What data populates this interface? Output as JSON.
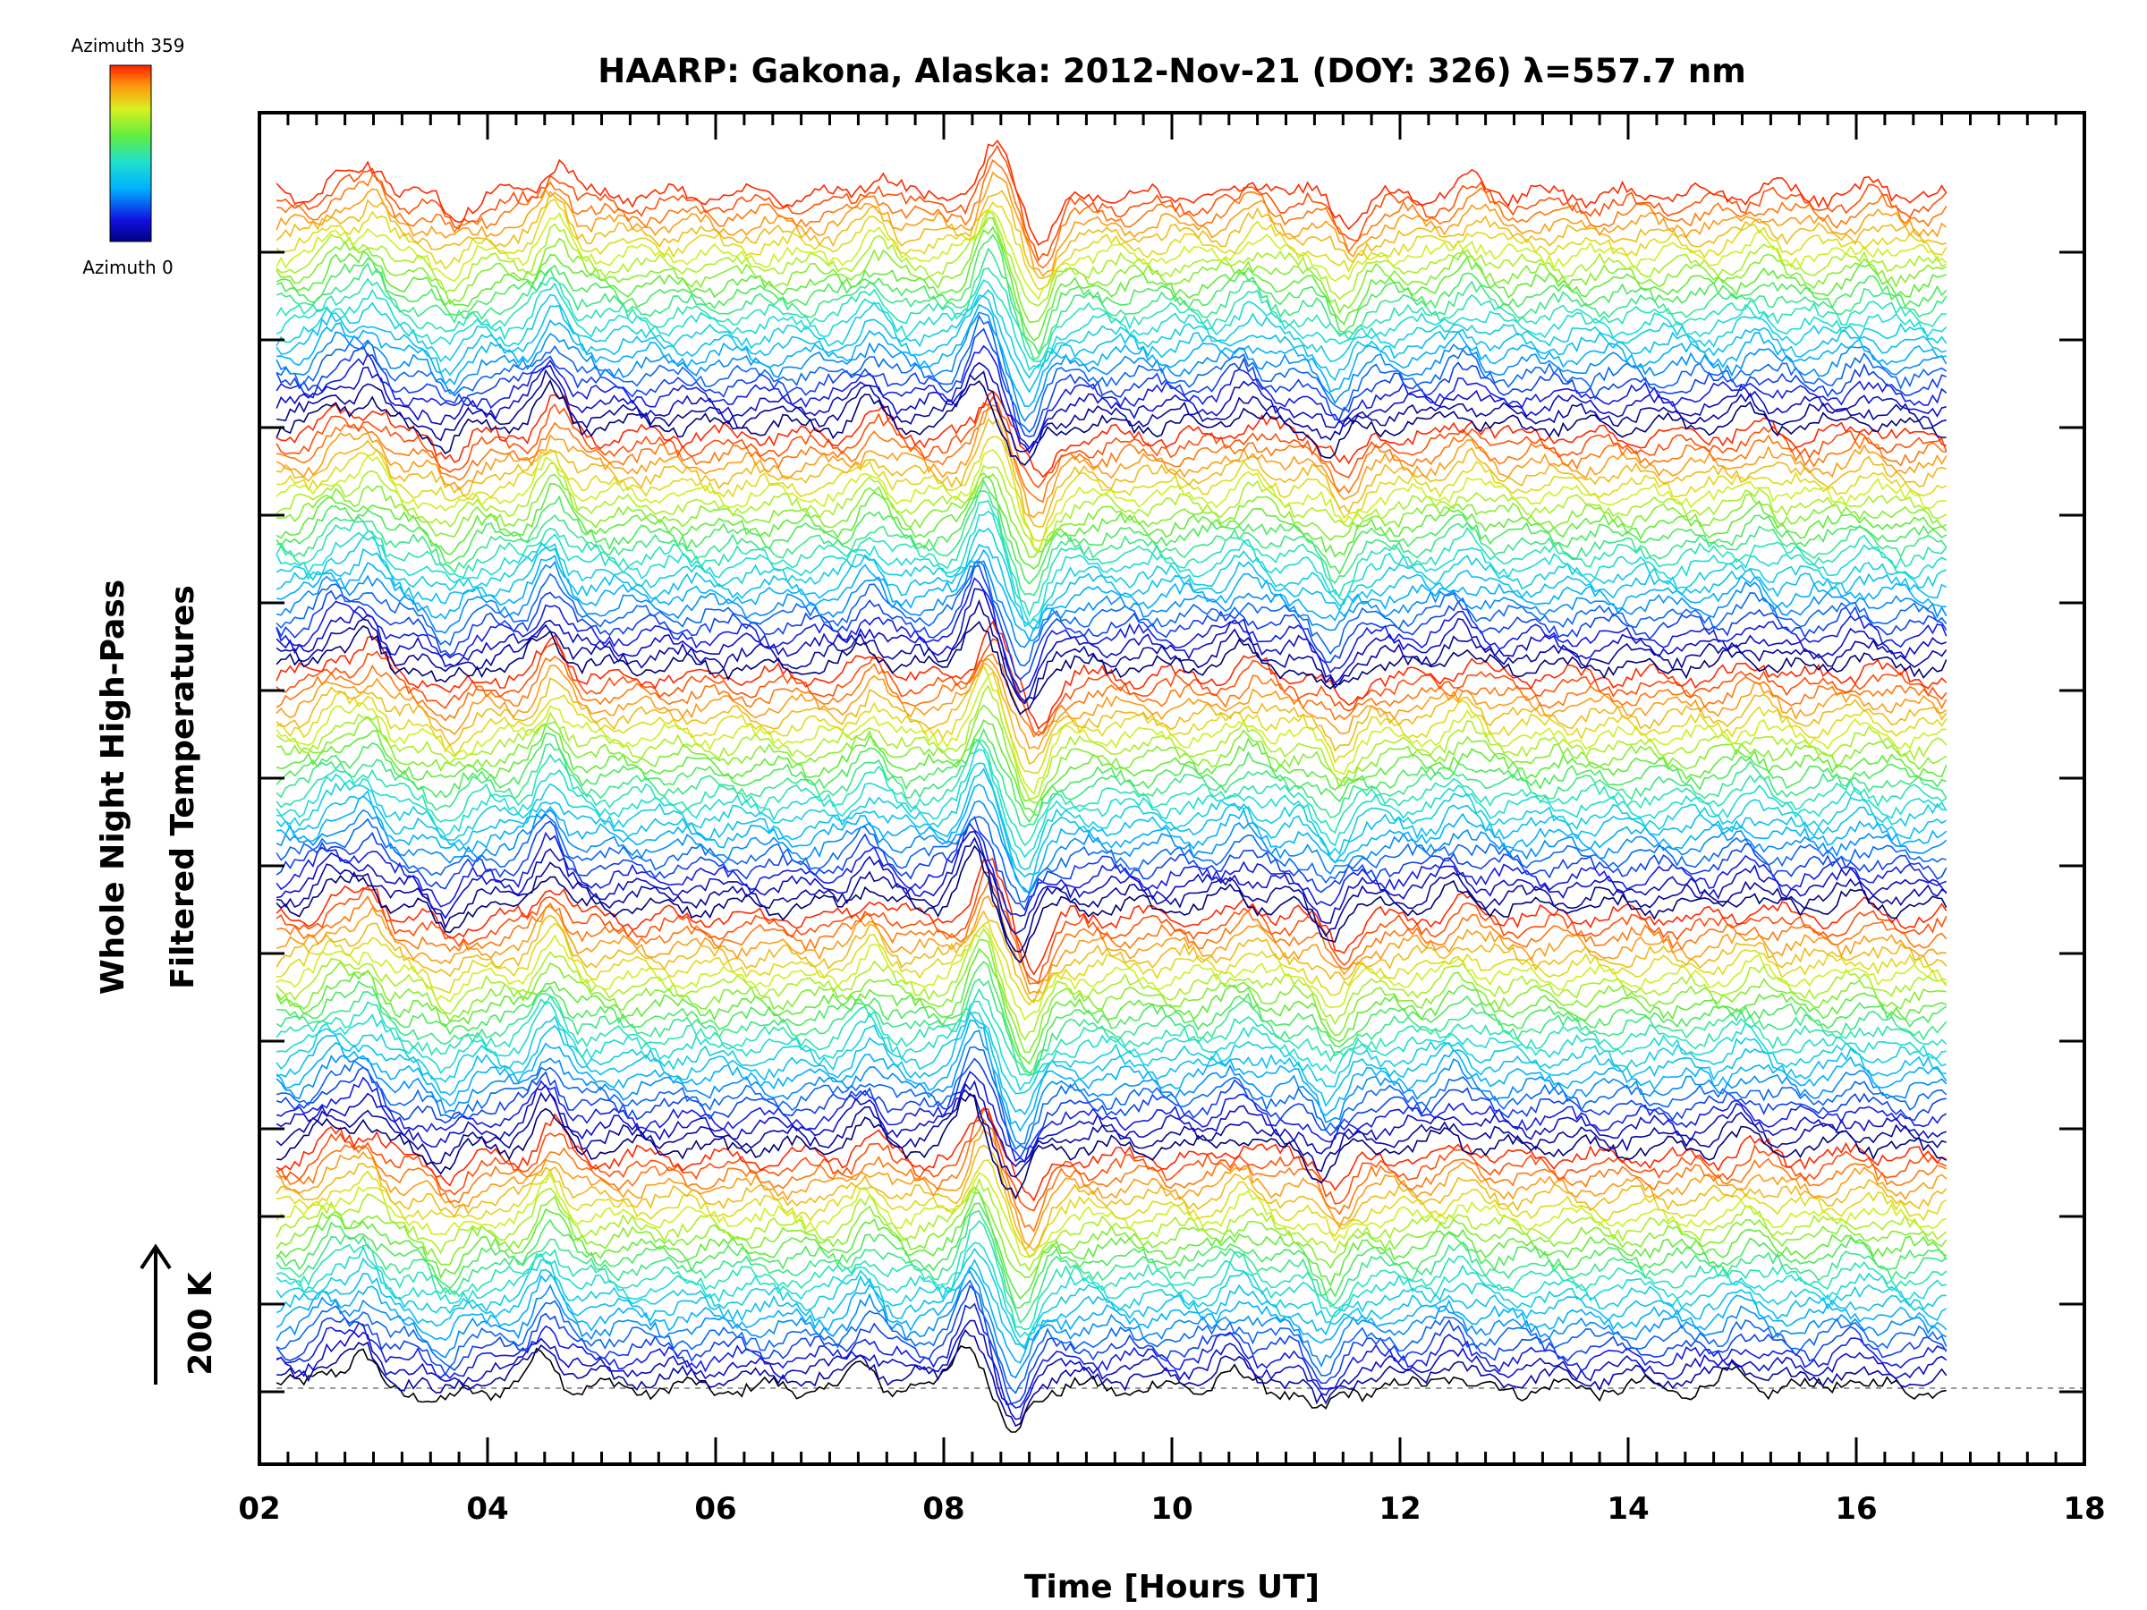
{
  "chart_data": {
    "type": "line",
    "title": "HAARP: Gakona,  Alaska: 2012-Nov-21 (DOY: 326) λ=557.7 nm",
    "xlabel": "Time [Hours UT]",
    "ylabel_lines": [
      "Whole Night High-Pass",
      "Filtered Temperatures"
    ],
    "xlim": [
      2,
      18
    ],
    "x_ticks": [
      "02",
      "04",
      "06",
      "08",
      "10",
      "12",
      "14",
      "16",
      "18"
    ],
    "x_tick_values": [
      2,
      4,
      6,
      8,
      10,
      12,
      14,
      16,
      18
    ],
    "data_time_range": [
      2.15,
      16.8
    ],
    "scale_bar": {
      "label": "200 K",
      "direction": "up"
    },
    "colorbar": {
      "top_label": "Azimuth 359",
      "bottom_label": "Azimuth 0",
      "colormap": "rainbow"
    },
    "series_description": "Stacked high-pass filtered temperature traces, one per azimuth bin, vertically offset and colored by azimuth (0–359). Azimuth sweep repeats in 5 bands up the plot.",
    "stack": {
      "sweeps": 5,
      "traces_per_sweep": 24,
      "azimuth_range": [
        0,
        359
      ]
    },
    "reference_line": "dashed baseline under the bottom trace",
    "common_features": [
      {
        "time": 2.6,
        "amplitude": 0.35
      },
      {
        "time": 2.9,
        "amplitude": 0.45
      },
      {
        "time": 3.6,
        "amplitude": -0.3
      },
      {
        "time": 4.5,
        "amplitude": 0.55
      },
      {
        "time": 7.3,
        "amplitude": 0.35
      },
      {
        "time": 8.2,
        "amplitude": 0.8
      },
      {
        "time": 8.6,
        "amplitude": -0.75
      },
      {
        "time": 10.5,
        "amplitude": 0.25
      },
      {
        "time": 11.3,
        "amplitude": -0.45
      },
      {
        "time": 12.4,
        "amplitude": 0.25
      },
      {
        "time": 14.95,
        "amplitude": 0.2
      },
      {
        "time": 15.9,
        "amplitude": 0.15
      }
    ]
  }
}
